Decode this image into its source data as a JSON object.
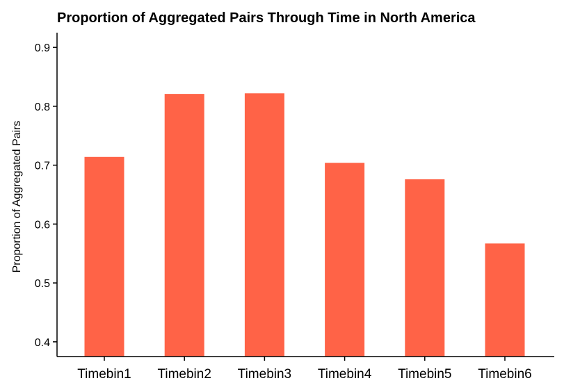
{
  "chart_data": {
    "type": "bar",
    "title": "Proportion of Aggregated Pairs Through Time in North America",
    "xlabel": "",
    "ylabel": "Proportion of Aggregated Pairs",
    "categories": [
      "Timebin1",
      "Timebin2",
      "Timebin3",
      "Timebin4",
      "Timebin5",
      "Timebin6"
    ],
    "values": [
      0.714,
      0.821,
      0.822,
      0.704,
      0.676,
      0.567
    ],
    "ylim": [
      0.375,
      0.925
    ],
    "yticks": [
      0.4,
      0.5,
      0.6,
      0.7,
      0.8,
      0.9
    ],
    "ytick_labels": [
      "0.4",
      "0.5",
      "0.6",
      "0.7",
      "0.8",
      "0.9"
    ],
    "bar_color": "#FF6347",
    "grid": false,
    "legend": "none"
  }
}
